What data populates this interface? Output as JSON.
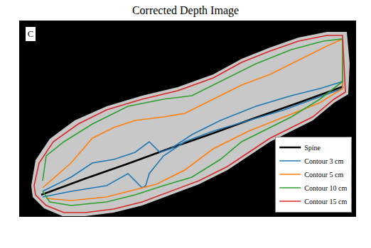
{
  "chart_data": {
    "type": "line",
    "title": "Corrected Depth Image",
    "annotations": [
      "C"
    ],
    "xlim": [
      28,
      500
    ],
    "ylim": [
      305,
      30
    ],
    "xticks": [],
    "yticks": [],
    "tick_labels": false,
    "grid": false,
    "legend": "lower right",
    "series": [
      {
        "type": "area",
        "color": "#c8c8c8",
        "x": [
          44,
          50,
          70,
          105,
          150,
          200,
          250,
          300,
          340,
          380,
          420,
          460,
          488,
          492,
          490,
          470,
          440,
          410,
          380,
          350,
          320,
          280,
          240,
          200,
          160,
          120,
          88,
          62,
          46,
          44
        ],
        "y": [
          262,
          226,
          196,
          170,
          150,
          135,
          123,
          105,
          83,
          67,
          53,
          45,
          45,
          90,
          133,
          145,
          170,
          185,
          200,
          220,
          240,
          260,
          275,
          290,
          300,
          305,
          305,
          294,
          278,
          262
        ]
      },
      {
        "name": "Spine",
        "color": "#000000",
        "x": [
          58,
          120,
          180,
          240,
          300,
          360,
          420,
          483
        ],
        "y": [
          275,
          252,
          231,
          209,
          188,
          166,
          145,
          122
        ]
      },
      {
        "name": "Contour 3 cm",
        "color": "#1f77b4",
        "x": [
          60,
          100,
          130,
          160,
          190,
          210,
          225,
          240,
          270,
          310,
          360,
          410,
          450,
          482,
          482,
          440,
          400,
          350,
          300,
          260,
          230,
          210,
          205,
          200,
          180,
          150,
          100,
          60
        ],
        "y": [
          270,
          250,
          230,
          225,
          215,
          200,
          215,
          210,
          190,
          170,
          150,
          135,
          125,
          115,
          125,
          140,
          155,
          170,
          185,
          200,
          220,
          245,
          262,
          265,
          245,
          262,
          270,
          278
        ]
      },
      {
        "name": "Contour 5 cm",
        "color": "#ff7f0e",
        "x": [
          60,
          100,
          130,
          160,
          190,
          230,
          260,
          300,
          340,
          380,
          420,
          460,
          482,
          482,
          450,
          400,
          350,
          300,
          260,
          220,
          180,
          150,
          100,
          65
        ],
        "y": [
          265,
          230,
          195,
          180,
          170,
          165,
          160,
          140,
          120,
          105,
          85,
          65,
          55,
          125,
          145,
          165,
          185,
          210,
          240,
          260,
          270,
          278,
          283,
          280
        ]
      },
      {
        "name": "Contour 10 cm",
        "color": "#2ca02c",
        "x": [
          60,
          65,
          90,
          130,
          180,
          230,
          270,
          320,
          360,
          410,
          455,
          482,
          482,
          450,
          410,
          380,
          340,
          310,
          270,
          230,
          190,
          150,
          100,
          70,
          60
        ],
        "y": [
          255,
          220,
          200,
          175,
          150,
          140,
          135,
          110,
          90,
          70,
          58,
          55,
          115,
          140,
          165,
          180,
          200,
          225,
          250,
          262,
          275,
          285,
          290,
          285,
          270
        ]
      },
      {
        "name": "Contour 15 cm",
        "color": "#d62728",
        "x": [
          48,
          55,
          75,
          110,
          150,
          200,
          250,
          300,
          340,
          380,
          420,
          460,
          482,
          486,
          470,
          440,
          410,
          380,
          350,
          320,
          280,
          240,
          200,
          160,
          120,
          90,
          65,
          50,
          48
        ],
        "y": [
          262,
          230,
          200,
          175,
          155,
          140,
          128,
          110,
          88,
          72,
          58,
          50,
          50,
          130,
          140,
          165,
          180,
          195,
          215,
          235,
          255,
          270,
          285,
          295,
          300,
          300,
          290,
          275,
          262
        ]
      }
    ]
  }
}
